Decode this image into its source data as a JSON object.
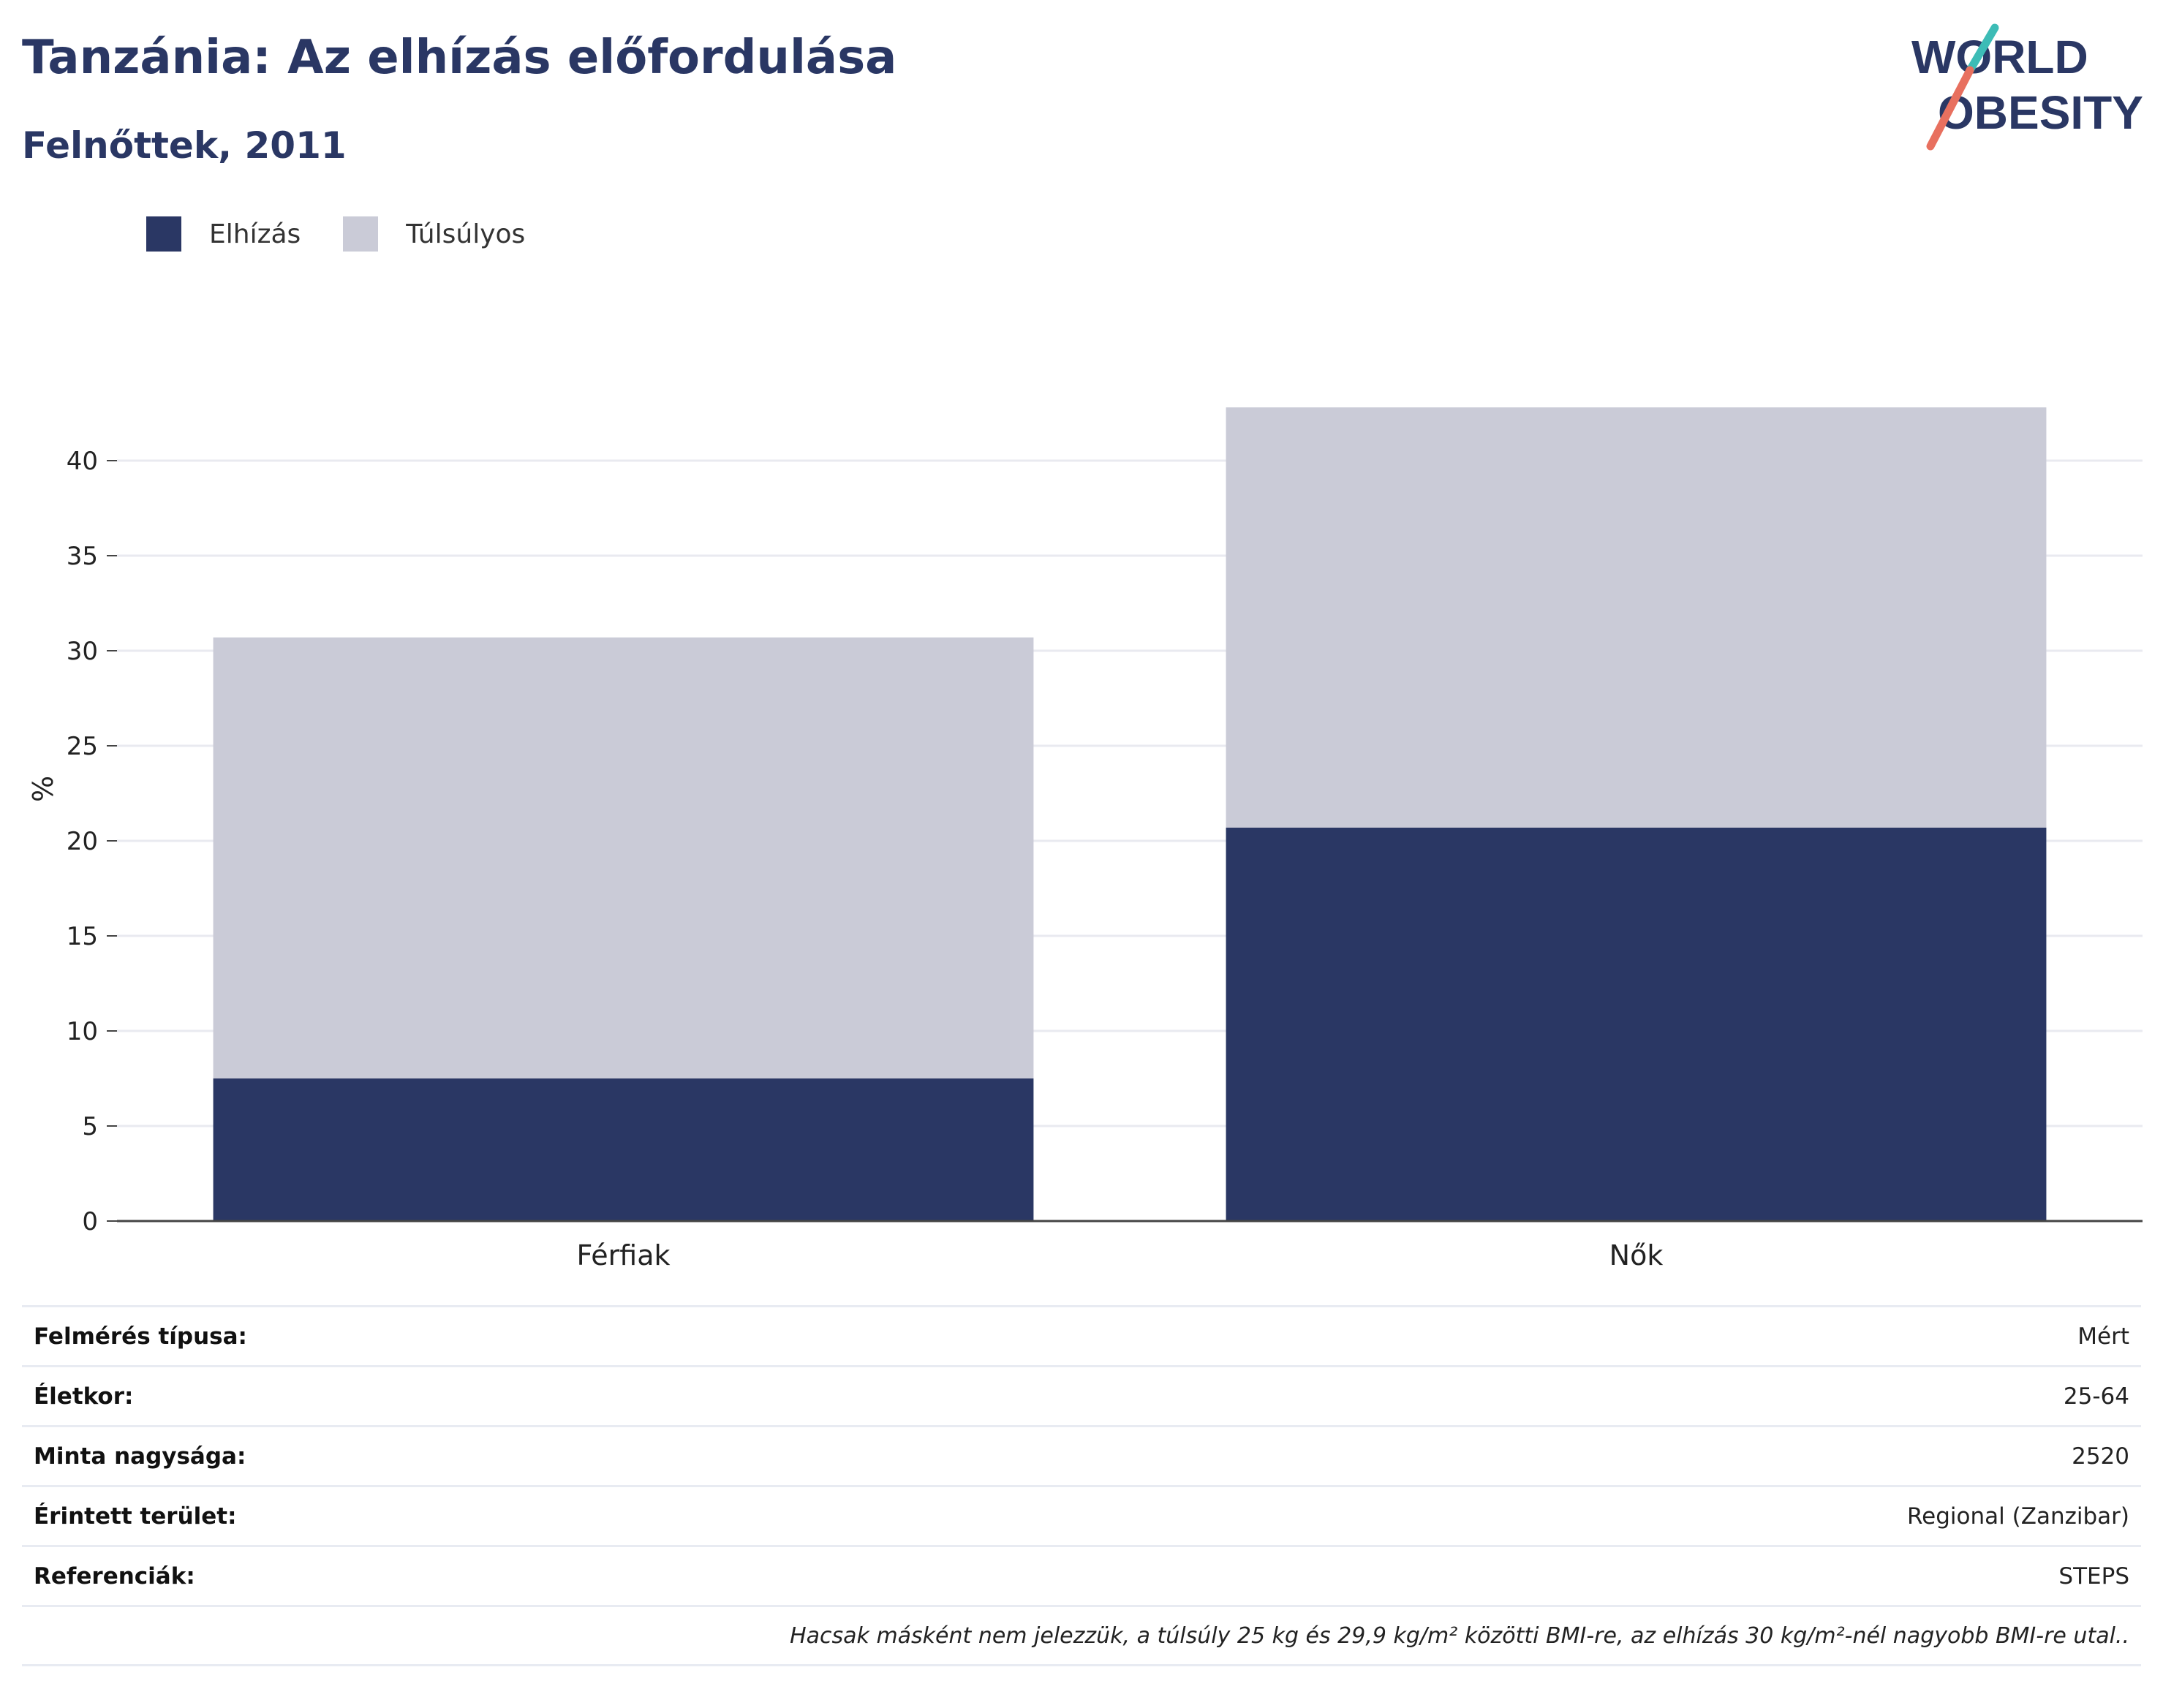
{
  "header": {
    "title": "Tanzánia: Az elhízás előfordulása",
    "subtitle": "Felnőttek, 2011"
  },
  "logo": {
    "line1": "WORLD",
    "line2": "OBESITY",
    "colors": {
      "text": "#2a3764",
      "slash_top": "#3dbcb6",
      "slash_bottom": "#e8705f"
    }
  },
  "legend": [
    {
      "label": "Elhízás",
      "color": "#2a3764"
    },
    {
      "label": "Túlsúlyos",
      "color": "#cacbd7"
    }
  ],
  "chart_data": {
    "type": "bar",
    "stacked": true,
    "categories": [
      "Férfiak",
      "Nők"
    ],
    "series": [
      {
        "name": "Elhízás",
        "values": [
          7.5,
          20.7
        ],
        "color": "#2a3764"
      },
      {
        "name": "Túlsúlyos",
        "values": [
          23.2,
          22.1
        ],
        "color": "#cacbd7"
      }
    ],
    "ylabel": "%",
    "ylim": [
      0,
      45
    ],
    "yticks": [
      0,
      5,
      10,
      15,
      20,
      25,
      30,
      35,
      40
    ],
    "grid": true,
    "legend_position": "top-left"
  },
  "info": {
    "rows": [
      {
        "key": "Felmérés típusa:",
        "value": "Mért"
      },
      {
        "key": "Életkor:",
        "value": "25-64"
      },
      {
        "key": "Minta nagysága:",
        "value": "2520"
      },
      {
        "key": "Érintett terület:",
        "value": "Regional (Zanzibar)"
      },
      {
        "key": "Referenciák:",
        "value": "STEPS"
      }
    ],
    "note": "Hacsak másként nem jelezzük, a túlsúly 25 kg és 29,9 kg/m² közötti BMI-re, az elhízás 30 kg/m²-nél nagyobb BMI-re utal.."
  }
}
